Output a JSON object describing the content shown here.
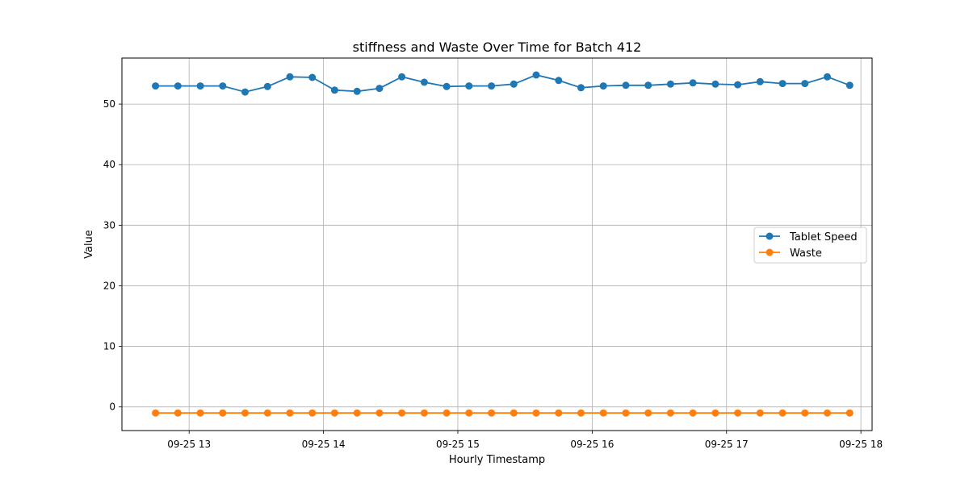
{
  "chart_data": {
    "type": "line",
    "title": "stiffness and Waste Over Time for Batch 412",
    "xlabel": "Hourly Timestamp",
    "ylabel": "Value",
    "x_start": "09-25 12:45",
    "x_step_minutes": 10,
    "xlim": [
      "09-25 12:30",
      "09-25 18:05"
    ],
    "ylim": [
      -3.9,
      57.6
    ],
    "xticks": [
      {
        "label": "09-25 13",
        "hour": 13
      },
      {
        "label": "09-25 14",
        "hour": 14
      },
      {
        "label": "09-25 15",
        "hour": 15
      },
      {
        "label": "09-25 16",
        "hour": 16
      },
      {
        "label": "09-25 17",
        "hour": 17
      },
      {
        "label": "09-25 18",
        "hour": 18
      }
    ],
    "yticks": [
      0,
      10,
      20,
      30,
      40,
      50
    ],
    "grid": true,
    "legend_position": "center-right",
    "series": [
      {
        "name": "Tablet Speed",
        "color": "#1f77b4",
        "marker": "circle",
        "values": [
          53.0,
          53.0,
          53.0,
          53.0,
          52.0,
          52.9,
          54.5,
          54.4,
          52.3,
          52.1,
          52.6,
          54.5,
          53.6,
          52.9,
          53.0,
          53.0,
          53.3,
          54.8,
          53.9,
          52.7,
          53.0,
          53.1,
          53.1,
          53.3,
          53.5,
          53.3,
          53.2,
          53.7,
          53.4,
          53.4,
          54.5,
          53.1
        ]
      },
      {
        "name": "Waste",
        "color": "#ff7f0e",
        "marker": "circle",
        "values": [
          -1,
          -1,
          -1,
          -1,
          -1,
          -1,
          -1,
          -1,
          -1,
          -1,
          -1,
          -1,
          -1,
          -1,
          -1,
          -1,
          -1,
          -1,
          -1,
          -1,
          -1,
          -1,
          -1,
          -1,
          -1,
          -1,
          -1,
          -1,
          -1,
          -1,
          -1,
          -1
        ]
      }
    ]
  }
}
